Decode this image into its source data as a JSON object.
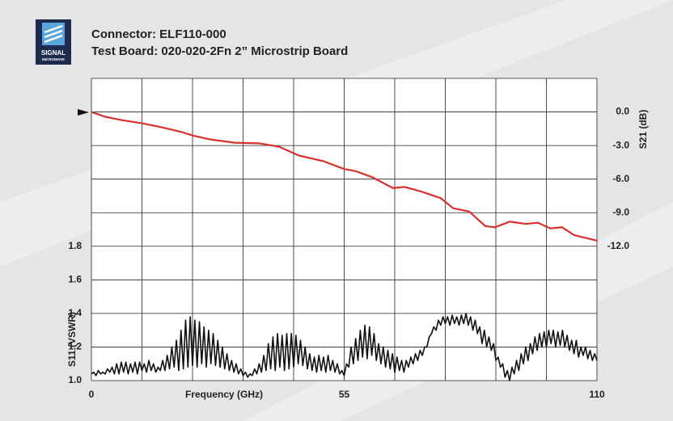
{
  "logo": {
    "name": "SIGNAL",
    "sub": "MICROWAVE"
  },
  "chart_data": {
    "type": "line",
    "title": "Connector: ELF110-000",
    "subtitle": "Test Board: 020-020-2Fn 2” Microstrip Board",
    "x_label": "Frequency (GHz)",
    "y_label": "S11 (VSWR)",
    "y2_label": "S21 (dB)",
    "xlim": [
      0,
      110
    ],
    "xticks": [
      0,
      55,
      110
    ],
    "xgrid": [
      0,
      11,
      22,
      33,
      44,
      55,
      66,
      77,
      88,
      99,
      110
    ],
    "ylim": [
      1.0,
      2.8
    ],
    "yticks": [
      {
        "value": 1.0,
        "label": "1.0"
      },
      1.2,
      1.4,
      1.6,
      1.8
    ],
    "ygrid": [
      1.0,
      1.2,
      1.4,
      1.6,
      1.8,
      2.0,
      2.2,
      2.4,
      2.6,
      2.8
    ],
    "y2lim": [
      -24,
      3
    ],
    "y2ticks": [
      {
        "value": 0,
        "label": "0.0"
      },
      {
        "value": -3,
        "label": "-3.0"
      },
      {
        "value": -6,
        "label": "-6.0"
      },
      {
        "value": -9,
        "label": "-9.0"
      },
      {
        "value": -12,
        "label": "-12.0"
      }
    ],
    "grid": true,
    "series": [
      {
        "name": "S21 (dB)",
        "axis": "y2",
        "color": "#d6322b",
        "x": [
          0,
          3,
          6.5,
          10.9,
          15.3,
          19.7,
          22,
          25.9,
          31.2,
          36.4,
          40.8,
          45.2,
          50.5,
          55,
          57.6,
          61.2,
          65.6,
          68.1,
          71.7,
          76,
          78.7,
          82.2,
          85.7,
          87.8,
          91,
          94.5,
          97.2,
          99.8,
          102.4,
          105,
          110
        ],
        "values": [
          0,
          -0.43,
          -0.72,
          -1.0,
          -1.37,
          -1.8,
          -2.1,
          -2.46,
          -2.75,
          -2.8,
          -3.1,
          -3.9,
          -4.4,
          -5.1,
          -5.3,
          -5.85,
          -6.8,
          -6.7,
          -7.1,
          -7.7,
          -8.6,
          -8.9,
          -10.2,
          -10.3,
          -9.8,
          -10.0,
          -9.9,
          -10.4,
          -10.3,
          -11.0,
          -11.5
        ]
      },
      {
        "name": "S11 (VSWR)",
        "color": "#111111",
        "x": [
          0,
          0.5,
          1,
          1.5,
          2,
          2.5,
          3,
          3.5,
          4,
          4.5,
          5,
          5.5,
          6,
          6.5,
          7,
          7.5,
          8,
          8.5,
          9,
          9.5,
          10,
          10.5,
          11,
          11.5,
          12,
          12.5,
          13,
          13.5,
          14,
          14.5,
          15,
          15.5,
          16,
          16.5,
          17,
          17.5,
          18,
          18.5,
          19,
          19.5,
          20,
          20.5,
          21,
          21.5,
          22,
          22.5,
          23,
          23.5,
          24,
          24.5,
          25,
          25.5,
          26,
          26.5,
          27,
          27.5,
          28,
          28.5,
          29,
          29.5,
          30,
          30.5,
          31,
          31.5,
          32,
          32.5,
          33,
          33.5,
          34,
          34.5,
          35,
          35.5,
          36,
          36.5,
          37,
          37.5,
          38,
          38.5,
          39,
          39.5,
          40,
          40.5,
          41,
          41.5,
          42,
          42.5,
          43,
          43.5,
          44,
          44.5,
          45,
          45.5,
          46,
          46.5,
          47,
          47.5,
          48,
          48.5,
          49,
          49.5,
          50,
          50.5,
          51,
          51.5,
          52,
          52.5,
          53,
          53.5,
          54,
          54.5,
          55,
          55.5,
          56,
          56.5,
          57,
          57.5,
          58,
          58.5,
          59,
          59.5,
          60,
          60.5,
          61,
          61.5,
          62,
          62.5,
          63,
          63.5,
          64,
          64.5,
          65,
          65.5,
          66,
          66.5,
          67,
          67.5,
          68,
          68.5,
          69,
          69.5,
          70,
          70.5,
          71,
          71.5,
          72,
          72.5,
          73,
          73.5,
          74,
          74.5,
          75,
          75.5,
          76,
          76.5,
          77,
          77.5,
          78,
          78.5,
          79,
          79.5,
          80,
          80.5,
          81,
          81.5,
          82,
          82.5,
          83,
          83.5,
          84,
          84.5,
          85,
          85.5,
          86,
          86.5,
          87,
          87.5,
          88,
          88.5,
          89,
          89.5,
          90,
          90.5,
          91,
          91.5,
          92,
          92.5,
          93,
          93.5,
          94,
          94.5,
          95,
          95.5,
          96,
          96.5,
          97,
          97.5,
          98,
          98.5,
          99,
          99.5,
          100,
          100.5,
          101,
          101.5,
          102,
          102.5,
          103,
          103.5,
          104,
          104.5,
          105,
          105.5,
          106,
          106.5,
          107,
          107.5,
          108,
          108.5,
          109,
          109.5,
          110
        ],
        "values": [
          1.04,
          1.05,
          1.03,
          1.06,
          1.04,
          1.05,
          1.04,
          1.07,
          1.05,
          1.08,
          1.04,
          1.1,
          1.04,
          1.11,
          1.05,
          1.11,
          1.04,
          1.1,
          1.05,
          1.11,
          1.04,
          1.11,
          1.06,
          1.1,
          1.05,
          1.12,
          1.06,
          1.1,
          1.05,
          1.08,
          1.06,
          1.12,
          1.06,
          1.15,
          1.07,
          1.2,
          1.08,
          1.24,
          1.06,
          1.3,
          1.07,
          1.36,
          1.08,
          1.38,
          1.09,
          1.36,
          1.08,
          1.35,
          1.1,
          1.32,
          1.08,
          1.3,
          1.1,
          1.28,
          1.09,
          1.24,
          1.08,
          1.2,
          1.07,
          1.16,
          1.06,
          1.12,
          1.05,
          1.1,
          1.04,
          1.07,
          1.03,
          1.05,
          1.02,
          1.04,
          1.03,
          1.07,
          1.04,
          1.1,
          1.05,
          1.15,
          1.06,
          1.22,
          1.07,
          1.26,
          1.06,
          1.28,
          1.08,
          1.27,
          1.06,
          1.28,
          1.07,
          1.28,
          1.08,
          1.27,
          1.1,
          1.24,
          1.09,
          1.2,
          1.07,
          1.16,
          1.06,
          1.14,
          1.05,
          1.15,
          1.06,
          1.14,
          1.05,
          1.15,
          1.06,
          1.12,
          1.05,
          1.1,
          1.04,
          1.06,
          1.03,
          1.1,
          1.08,
          1.2,
          1.1,
          1.25,
          1.12,
          1.3,
          1.14,
          1.33,
          1.13,
          1.32,
          1.15,
          1.28,
          1.12,
          1.22,
          1.1,
          1.2,
          1.08,
          1.18,
          1.07,
          1.16,
          1.05,
          1.14,
          1.06,
          1.12,
          1.05,
          1.12,
          1.08,
          1.14,
          1.1,
          1.16,
          1.12,
          1.18,
          1.15,
          1.2,
          1.2,
          1.26,
          1.28,
          1.32,
          1.3,
          1.36,
          1.33,
          1.38,
          1.34,
          1.38,
          1.33,
          1.39,
          1.34,
          1.38,
          1.33,
          1.39,
          1.34,
          1.4,
          1.33,
          1.38,
          1.3,
          1.36,
          1.28,
          1.32,
          1.22,
          1.3,
          1.2,
          1.26,
          1.18,
          1.22,
          1.12,
          1.14,
          1.08,
          1.1,
          1.02,
          1.06,
          1.0,
          1.08,
          1.04,
          1.12,
          1.06,
          1.16,
          1.1,
          1.2,
          1.12,
          1.22,
          1.16,
          1.26,
          1.18,
          1.28,
          1.2,
          1.29,
          1.2,
          1.3,
          1.22,
          1.3,
          1.2,
          1.29,
          1.21,
          1.3,
          1.2,
          1.27,
          1.18,
          1.24,
          1.16,
          1.24,
          1.14,
          1.2,
          1.15,
          1.2,
          1.13,
          1.18,
          1.12,
          1.16,
          1.12
        ]
      }
    ]
  }
}
